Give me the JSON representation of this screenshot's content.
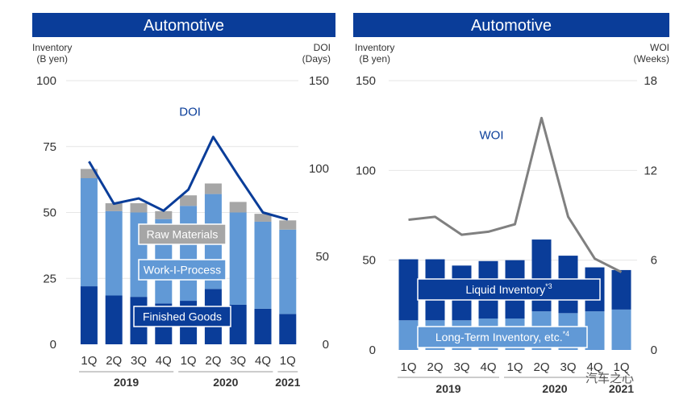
{
  "watermark": "汽车之心",
  "colors": {
    "title_bg": "#0a3d99",
    "finished_goods": "#0a3d99",
    "work_in_process": "#6199d6",
    "raw_materials": "#a6a6a6",
    "doi_line": "#0a3d99",
    "woi_line": "#808080",
    "liquid": "#0a3d99",
    "long_term": "#6199d6"
  },
  "left": {
    "title": "Automotive",
    "y_left_caption": [
      "Inventory",
      "(B yen)"
    ],
    "y_right_caption": [
      "DOI",
      "(Days)"
    ]
  },
  "right": {
    "title": "Automotive",
    "y_left_caption": [
      "Inventory",
      "(B yen)"
    ],
    "y_right_caption": [
      "WOI",
      "(Weeks)"
    ]
  },
  "chart_data": [
    {
      "type": "bar",
      "stacked": true,
      "title": "Automotive",
      "categories": [
        "1Q",
        "2Q",
        "3Q",
        "4Q",
        "1Q",
        "2Q",
        "3Q",
        "4Q",
        "1Q"
      ],
      "year_groups": [
        {
          "label": "2019",
          "start": 0,
          "end": 3
        },
        {
          "label": "2020",
          "start": 4,
          "end": 7
        },
        {
          "label": "2021",
          "start": 8,
          "end": 8
        }
      ],
      "ylabel": "Inventory (B yen)",
      "ylim": [
        0,
        100
      ],
      "yticks": [
        0,
        25,
        50,
        75,
        100
      ],
      "series": [
        {
          "name": "Finished Goods",
          "values": [
            22,
            18.5,
            18,
            15.5,
            16.5,
            21,
            15,
            13.5,
            11.5
          ]
        },
        {
          "name": "Work-I-Process",
          "values": [
            41,
            32,
            32,
            32,
            36,
            36,
            35,
            33,
            32
          ]
        },
        {
          "name": "Raw Materials",
          "values": [
            3.5,
            3,
            3.5,
            3,
            4,
            4,
            4,
            3,
            3.5
          ]
        }
      ],
      "line_series": {
        "name": "DOI",
        "axis": "right",
        "ylabel": "DOI (Days)",
        "ylim": [
          0,
          150
        ],
        "yticks": [
          0,
          50,
          100,
          150
        ],
        "values": [
          104,
          80,
          83,
          76,
          88,
          118,
          96,
          75,
          71
        ]
      }
    },
    {
      "type": "bar",
      "stacked": true,
      "title": "Automotive",
      "categories": [
        "1Q",
        "2Q",
        "3Q",
        "4Q",
        "1Q",
        "2Q",
        "3Q",
        "4Q",
        "1Q"
      ],
      "year_groups": [
        {
          "label": "2019",
          "start": 0,
          "end": 3
        },
        {
          "label": "2020",
          "start": 4,
          "end": 7
        },
        {
          "label": "2021",
          "start": 8,
          "end": 8
        }
      ],
      "ylabel": "Inventory (B yen)",
      "ylim": [
        0,
        150
      ],
      "yticks": [
        0,
        50,
        100,
        150
      ],
      "series": [
        {
          "name": "Long-Term Inventory, etc.*4",
          "values": [
            16.5,
            16.5,
            16.5,
            17.5,
            17.5,
            21.5,
            20.5,
            21.5,
            22.5
          ]
        },
        {
          "name": "Liquid Inventory*3",
          "values": [
            34,
            34,
            30.5,
            32,
            32.5,
            40,
            32,
            24.5,
            22
          ]
        }
      ],
      "line_series": {
        "name": "WOI",
        "axis": "right",
        "ylabel": "WOI (Weeks)",
        "ylim": [
          0,
          18
        ],
        "yticks": [
          0,
          6,
          12,
          18
        ],
        "values": [
          8.7,
          8.9,
          7.7,
          7.9,
          8.4,
          15.5,
          8.9,
          6.1,
          5.2
        ]
      }
    }
  ]
}
